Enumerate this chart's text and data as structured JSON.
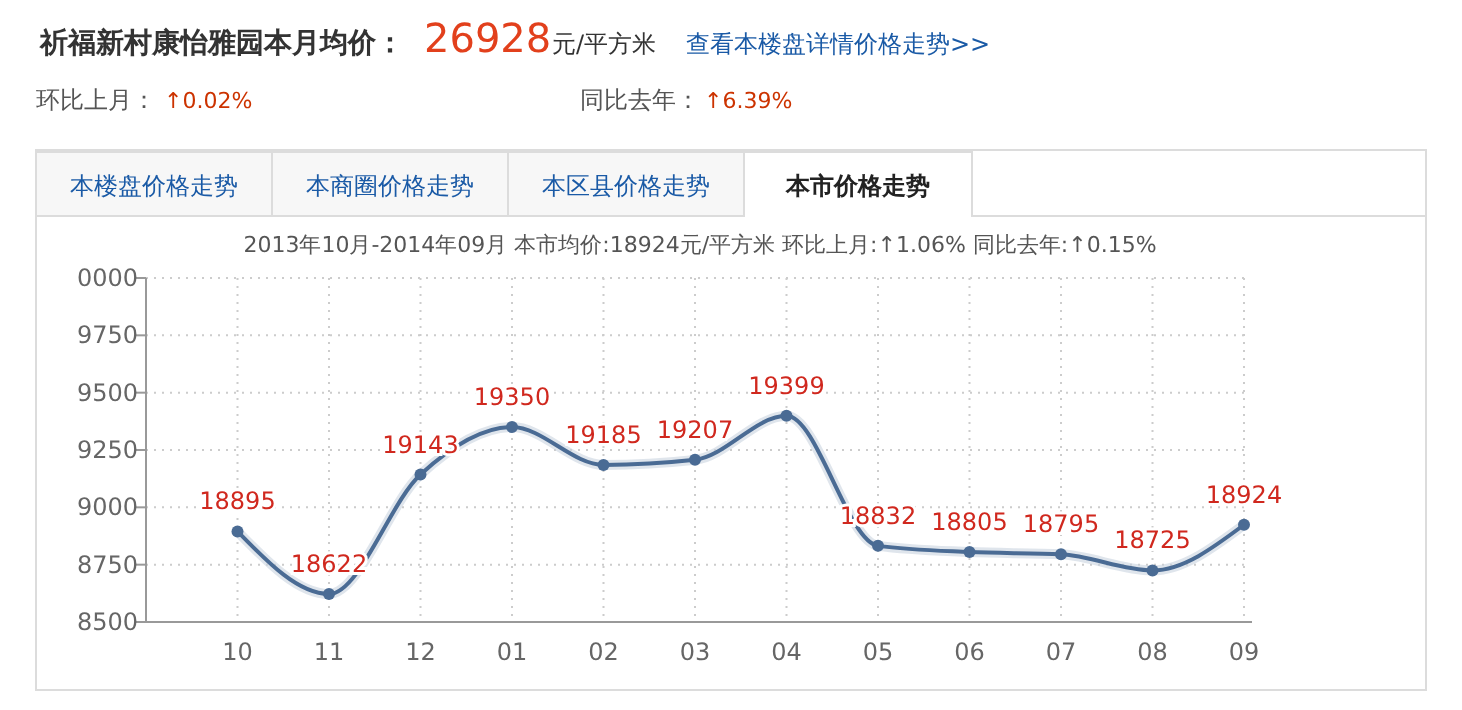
{
  "chart_data": {
    "type": "line",
    "title": "2013年10月-2014年09月 本市均价:18924元/平方米 环比上月:↑1.06% 同比去年:↑0.15%",
    "annotations": [
      "祈福新村康怡雅园本月均价：",
      "26928",
      "元/平方米",
      "查看本楼盘详情价格走势>>",
      "环比上月：",
      "↑0.02%",
      "同比去年：",
      "↑6.39%",
      "本楼盘价格走势",
      "本商圈价格走势",
      "本区县价格走势",
      "本市价格走势",
      "8500",
      "8750",
      "9000",
      "9250",
      "9500",
      "9750",
      "0000"
    ],
    "categories": [
      "10",
      "11",
      "12",
      "01",
      "02",
      "03",
      "04",
      "05",
      "06",
      "07",
      "08",
      "09"
    ],
    "series": [
      {
        "color": "#4a6b94",
        "values": [
          18895,
          18622,
          19143,
          19350,
          19185,
          19207,
          19399,
          18832,
          18805,
          18795,
          18725,
          18924
        ]
      }
    ],
    "ylim": [
      18500,
      20000
    ],
    "yticks": [
      {
        "value": 18500,
        "label": null
      },
      {
        "value": 18750,
        "label": null
      },
      {
        "value": 19000,
        "label": null
      },
      {
        "value": 19250,
        "label": null
      },
      {
        "value": 19500,
        "label": null
      },
      {
        "value": 19750,
        "label": null
      },
      {
        "value": 20000,
        "label": null
      }
    ],
    "data_labels": true,
    "grid": true,
    "marker": "circle",
    "line_style": "solid"
  }
}
